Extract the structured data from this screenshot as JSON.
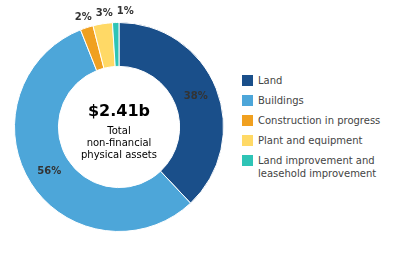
{
  "chart_data": {
    "type": "doughnut",
    "categories": [
      "Land",
      "Buildings",
      "Construction in progress",
      "Plant and equipment",
      "Land improvement and\nleasehold improvement"
    ],
    "values": [
      38,
      56,
      2,
      3,
      1
    ],
    "value_labels": [
      "38%",
      "56%",
      "2%",
      "3%",
      "1%"
    ],
    "colors": [
      "#1a4f8a",
      "#4da6d9",
      "#f0a020",
      "#ffd966",
      "#2ec4b6"
    ],
    "annotations": [
      "$2.41b",
      "Total\nnon-financial\nphysical assets"
    ],
    "data_labels": true,
    "legend": "right"
  }
}
